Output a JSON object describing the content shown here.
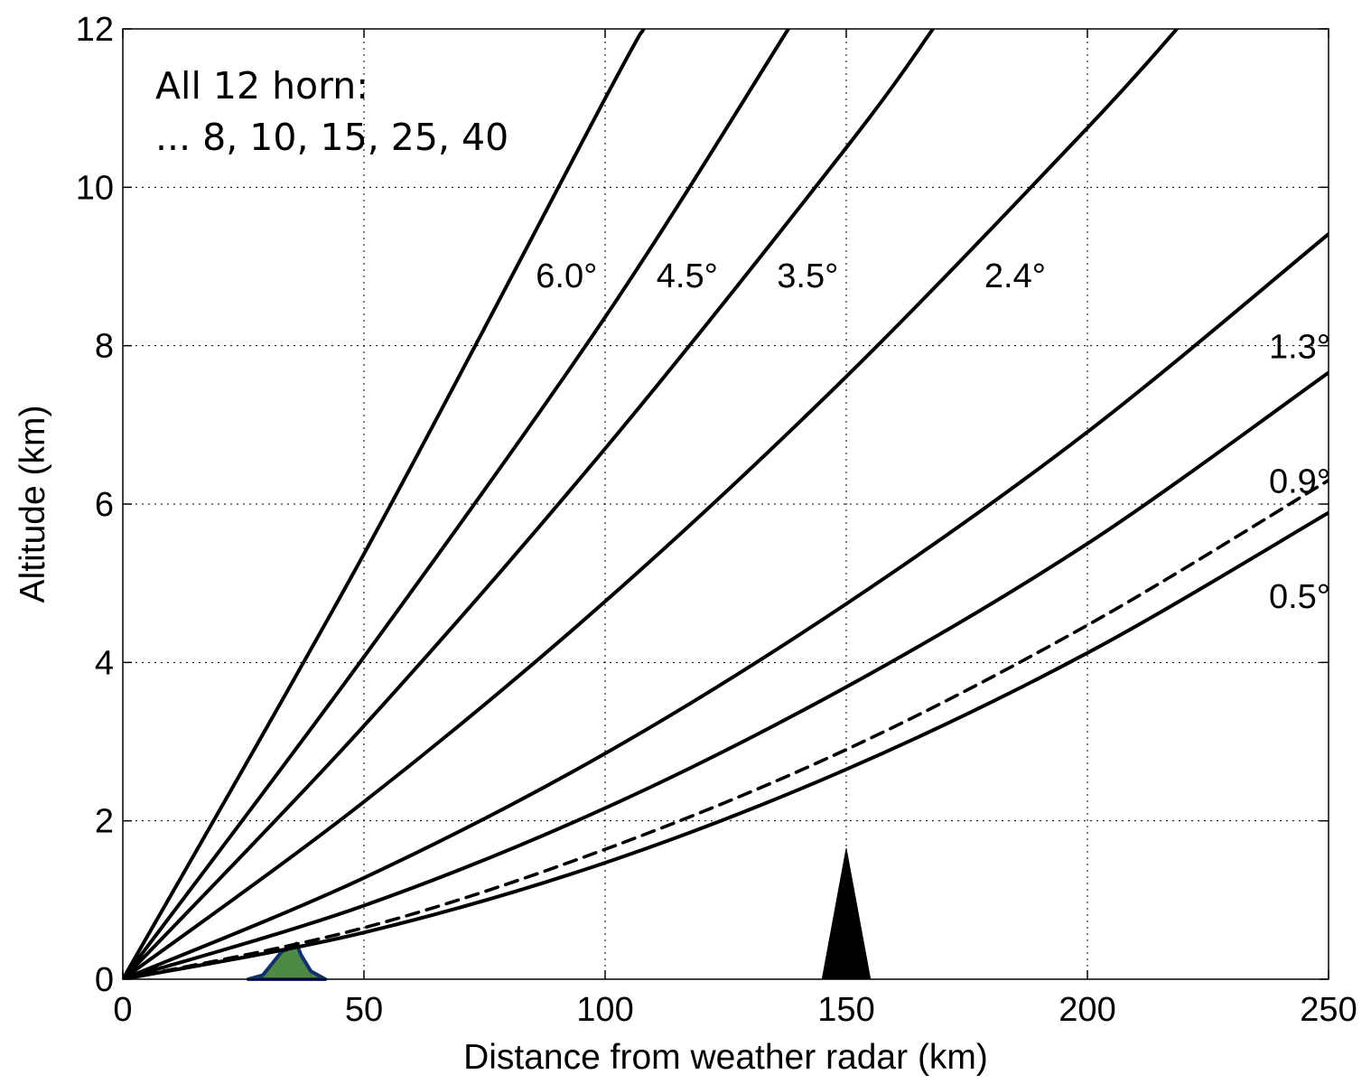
{
  "chart_data": {
    "type": "line",
    "title": "",
    "xlabel": "Distance from weather radar (km)",
    "ylabel": "Altitude (km)",
    "xlim": [
      0,
      250
    ],
    "ylim": [
      0,
      12
    ],
    "xticks": [
      "0",
      "50",
      "100",
      "150",
      "200",
      "250"
    ],
    "yticks": [
      "0",
      "2",
      "4",
      "6",
      "8",
      "10",
      "12"
    ],
    "grid": true,
    "legend": "none",
    "annotation_lines": [
      "All 12 horn:",
      "... 8, 10, 15, 25, 40"
    ],
    "series": [
      {
        "name": "0.5°",
        "style": "solid",
        "x": [
          0,
          50,
          100,
          150,
          200,
          250
        ],
        "y": [
          0,
          0.59,
          1.47,
          2.65,
          4.12,
          5.89
        ],
        "label_at": [
          244,
          4.85
        ]
      },
      {
        "name": "",
        "style": "dashed",
        "x": [
          0,
          50,
          100,
          150,
          200,
          250
        ],
        "y": [
          0,
          0.65,
          1.64,
          2.9,
          4.47,
          6.3
        ]
      },
      {
        "name": "0.9°",
        "style": "solid",
        "x": [
          0,
          50,
          100,
          150,
          200,
          250
        ],
        "y": [
          0,
          0.93,
          2.16,
          3.69,
          5.5,
          7.66
        ],
        "label_at": [
          244,
          6.3
        ]
      },
      {
        "name": "1.3°",
        "style": "solid",
        "x": [
          0,
          50,
          100,
          150,
          200,
          250
        ],
        "y": [
          0,
          1.28,
          2.85,
          4.74,
          6.91,
          9.41
        ],
        "label_at": [
          244,
          8.0
        ]
      },
      {
        "name": "2.4°",
        "style": "solid",
        "x": [
          0,
          50,
          100,
          150,
          200,
          220
        ],
        "y": [
          0,
          2.24,
          4.77,
          7.61,
          10.75,
          12.1
        ],
        "label_at": [
          185,
          8.9
        ]
      },
      {
        "name": "3.5°",
        "style": "solid",
        "x": [
          0,
          50,
          100,
          150,
          168
        ],
        "y": [
          0,
          3.2,
          6.7,
          10.5,
          12.0
        ],
        "label_at": [
          142,
          8.9
        ]
      },
      {
        "name": "4.5°",
        "style": "solid",
        "x": [
          0,
          50,
          100,
          138
        ],
        "y": [
          0,
          4.07,
          8.36,
          12.0
        ],
        "label_at": [
          117,
          8.9
        ]
      },
      {
        "name": "6.0°",
        "style": "solid",
        "x": [
          0,
          50,
          100,
          108
        ],
        "y": [
          0,
          5.37,
          11.12,
          12.0
        ],
        "label_at": [
          92,
          8.9
        ]
      }
    ],
    "terrain": [
      {
        "x": [
          26,
          29,
          31,
          33,
          35,
          36,
          37,
          39,
          42
        ],
        "y": [
          0,
          0.05,
          0.2,
          0.35,
          0.4,
          0.45,
          0.3,
          0.1,
          0
        ],
        "fill": "#4e8a45",
        "stroke": "#13306e"
      },
      {
        "x": [
          145,
          150,
          155
        ],
        "y": [
          0,
          1.65,
          0
        ],
        "fill": "#000000",
        "stroke": "#000000"
      }
    ]
  }
}
